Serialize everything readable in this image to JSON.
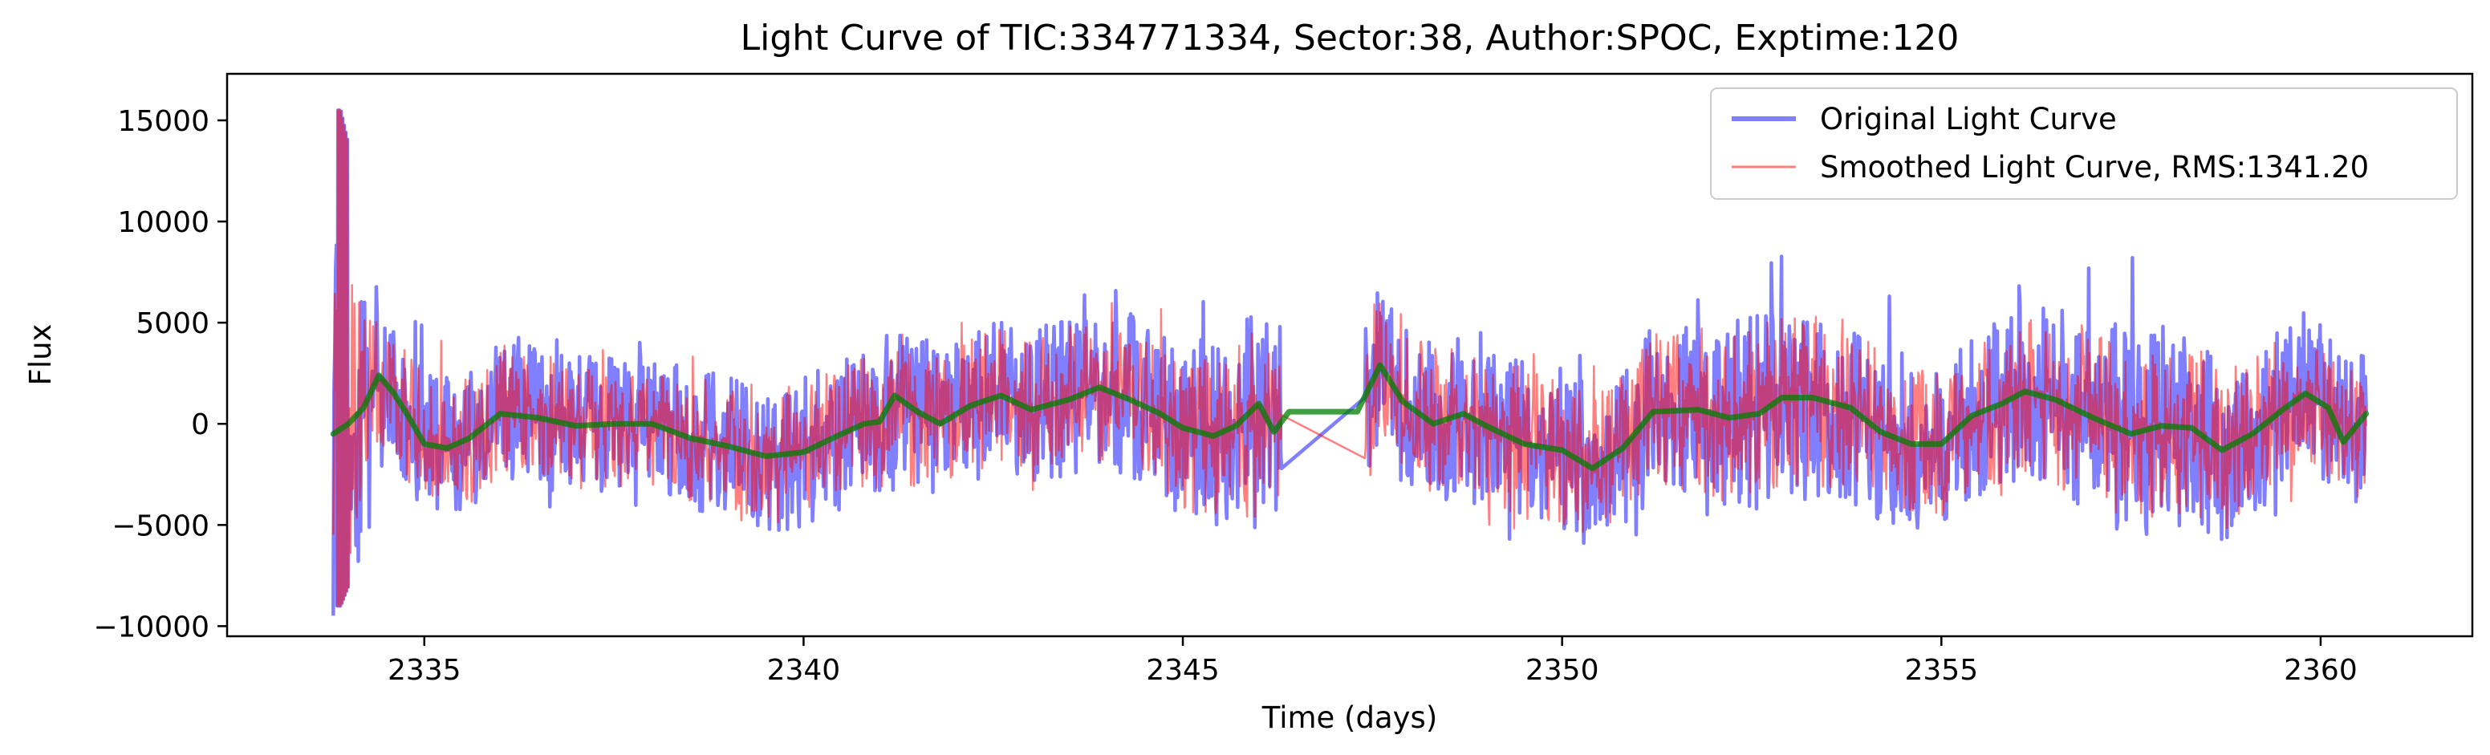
{
  "chart_data": {
    "type": "line",
    "title": "Light Curve of TIC:334771334, Sector:38, Author:SPOC, Exptime:120",
    "xlabel": "Time (days)",
    "ylabel": "Flux",
    "xlim": [
      2332.4,
      2362.0
    ],
    "ylim": [
      -10500,
      17300
    ],
    "xticks": [
      2335,
      2340,
      2345,
      2350,
      2355,
      2360
    ],
    "yticks": [
      -10000,
      -5000,
      0,
      5000,
      10000,
      15000
    ],
    "xtick_labels": [
      "2335",
      "2340",
      "2345",
      "2350",
      "2355",
      "2360"
    ],
    "ytick_labels": [
      "−10000",
      "−5000",
      "0",
      "5000",
      "10000",
      "15000"
    ],
    "grid": false,
    "legend_position": "top-right",
    "gap": [
      2346.3,
      2347.4
    ],
    "series": [
      {
        "name": "Original Light Curve",
        "color": "#0000ff",
        "opacity": 0.5,
        "x_start": 2333.8,
        "x_end": 2360.6,
        "envelope": [
          {
            "x": 2333.9,
            "low": -9000,
            "high": 15500
          },
          {
            "x": 2334.5,
            "low": -3200,
            "high": 5400
          },
          {
            "x": 2336.0,
            "low": -4200,
            "high": 4200
          },
          {
            "x": 2338.0,
            "low": -4000,
            "high": 4000
          },
          {
            "x": 2339.5,
            "low": -5300,
            "high": 3600
          },
          {
            "x": 2341.0,
            "low": -3500,
            "high": 5300
          },
          {
            "x": 2343.0,
            "low": -3800,
            "high": 5500
          },
          {
            "x": 2344.0,
            "low": -3600,
            "high": 6300
          },
          {
            "x": 2346.2,
            "low": -5500,
            "high": 6000
          },
          {
            "x": 2347.5,
            "low": -3200,
            "high": 6200
          },
          {
            "x": 2349.0,
            "low": -5500,
            "high": 4400
          },
          {
            "x": 2350.5,
            "low": -5800,
            "high": 3600
          },
          {
            "x": 2353.1,
            "low": -3600,
            "high": 8400
          },
          {
            "x": 2355.0,
            "low": -4200,
            "high": 5300
          },
          {
            "x": 2357.6,
            "low": -4000,
            "high": 8400
          },
          {
            "x": 2359.0,
            "low": -4800,
            "high": 5400
          },
          {
            "x": 2360.5,
            "low": -4000,
            "high": 5000
          }
        ]
      },
      {
        "name": "Smoothed Light Curve, RMS:1341.20",
        "color": "#ff0000",
        "opacity": 0.5
      },
      {
        "color": "#008000",
        "opacity": 0.75,
        "points": [
          [
            2333.8,
            -500
          ],
          [
            2334.0,
            0
          ],
          [
            2334.2,
            800
          ],
          [
            2334.4,
            2400
          ],
          [
            2334.6,
            1500
          ],
          [
            2334.8,
            300
          ],
          [
            2335.0,
            -1000
          ],
          [
            2335.3,
            -1200
          ],
          [
            2335.6,
            -700
          ],
          [
            2336.0,
            500
          ],
          [
            2336.5,
            300
          ],
          [
            2337.0,
            -100
          ],
          [
            2337.5,
            0
          ],
          [
            2338.0,
            0
          ],
          [
            2338.5,
            -700
          ],
          [
            2339.0,
            -1100
          ],
          [
            2339.5,
            -1600
          ],
          [
            2340.0,
            -1400
          ],
          [
            2340.5,
            -500
          ],
          [
            2340.8,
            0
          ],
          [
            2341.0,
            100
          ],
          [
            2341.2,
            1400
          ],
          [
            2341.5,
            600
          ],
          [
            2341.8,
            0
          ],
          [
            2342.2,
            900
          ],
          [
            2342.6,
            1400
          ],
          [
            2343.0,
            700
          ],
          [
            2343.5,
            1200
          ],
          [
            2343.9,
            1800
          ],
          [
            2344.3,
            1200
          ],
          [
            2344.7,
            500
          ],
          [
            2345.0,
            -200
          ],
          [
            2345.4,
            -600
          ],
          [
            2345.7,
            -100
          ],
          [
            2346.0,
            1000
          ],
          [
            2346.2,
            -400
          ],
          [
            2346.4,
            600
          ],
          [
            2347.3,
            600
          ],
          [
            2347.6,
            2900
          ],
          [
            2347.9,
            1100
          ],
          [
            2348.3,
            0
          ],
          [
            2348.7,
            500
          ],
          [
            2349.0,
            -100
          ],
          [
            2349.5,
            -1000
          ],
          [
            2350.0,
            -1300
          ],
          [
            2350.4,
            -2200
          ],
          [
            2350.8,
            -1200
          ],
          [
            2351.2,
            600
          ],
          [
            2351.8,
            700
          ],
          [
            2352.2,
            300
          ],
          [
            2352.6,
            500
          ],
          [
            2352.9,
            1300
          ],
          [
            2353.3,
            1300
          ],
          [
            2353.8,
            800
          ],
          [
            2354.2,
            -400
          ],
          [
            2354.6,
            -1000
          ],
          [
            2355.0,
            -1000
          ],
          [
            2355.4,
            400
          ],
          [
            2355.8,
            1000
          ],
          [
            2356.1,
            1600
          ],
          [
            2356.5,
            1200
          ],
          [
            2357.0,
            300
          ],
          [
            2357.5,
            -500
          ],
          [
            2357.9,
            -100
          ],
          [
            2358.3,
            -200
          ],
          [
            2358.7,
            -1300
          ],
          [
            2359.1,
            -500
          ],
          [
            2359.5,
            700
          ],
          [
            2359.8,
            1500
          ],
          [
            2360.1,
            800
          ],
          [
            2360.3,
            -900
          ],
          [
            2360.6,
            500
          ]
        ]
      }
    ]
  }
}
